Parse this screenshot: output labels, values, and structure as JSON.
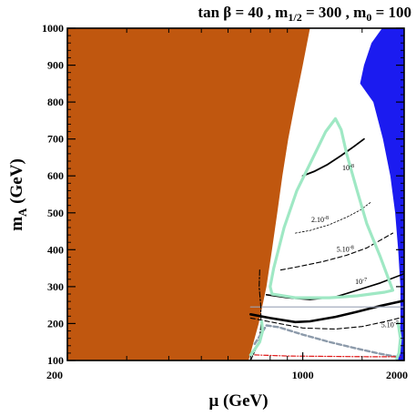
{
  "chart_data": {
    "type": "line",
    "title": "tan β = 40 ,  m1/2 = 300 ,  m0 = 100",
    "title_parts": [
      {
        "text": "tan ",
        "sub": false
      },
      {
        "text": "β",
        "sub": false
      },
      {
        "text": " = 40 ,  m",
        "sub": false
      },
      {
        "text": "1/2",
        "sub": true
      },
      {
        "text": " = 300 ,  m",
        "sub": false
      },
      {
        "text": "0",
        "sub": true
      },
      {
        "text": " = 100",
        "sub": false
      }
    ],
    "xlabel": "μ (GeV)",
    "ylabel_main": "m",
    "ylabel_sub": "A",
    "ylabel_rest": " (GeV)",
    "x_scale": "log",
    "xlim": [
      200,
      2000
    ],
    "ylim": [
      100,
      1000
    ],
    "x_tick_labels": [
      {
        "value": 200,
        "label": "200"
      },
      {
        "value": 1000,
        "label": "1000"
      },
      {
        "value": 2000,
        "label": "2000"
      }
    ],
    "y_tick_labels": [
      {
        "value": 100,
        "label": "100"
      },
      {
        "value": 200,
        "label": "200"
      },
      {
        "value": 300,
        "label": "300"
      },
      {
        "value": 400,
        "label": "400"
      },
      {
        "value": 500,
        "label": "500"
      },
      {
        "value": 600,
        "label": "600"
      },
      {
        "value": 700,
        "label": "700"
      },
      {
        "value": 800,
        "label": "800"
      },
      {
        "value": 900,
        "label": "900"
      },
      {
        "value": 1000,
        "label": "1000"
      }
    ],
    "grid": false,
    "regions": [
      {
        "name": "excluded-left",
        "color": "#c0570f",
        "points": [
          [
            200,
            1000
          ],
          [
            1050,
            1000
          ],
          [
            1000,
            900
          ],
          [
            950,
            800
          ],
          [
            905,
            700
          ],
          [
            870,
            600
          ],
          [
            840,
            500
          ],
          [
            810,
            400
          ],
          [
            780,
            300
          ],
          [
            740,
            200
          ],
          [
            690,
            100
          ],
          [
            200,
            100
          ]
        ]
      },
      {
        "name": "excluded-right",
        "color": "#1b1bf0",
        "points": [
          [
            1720,
            1000
          ],
          [
            2000,
            1000
          ],
          [
            2000,
            100
          ],
          [
            1920,
            100
          ],
          [
            1950,
            200
          ],
          [
            1950,
            300
          ],
          [
            1920,
            400
          ],
          [
            1880,
            500
          ],
          [
            1820,
            600
          ],
          [
            1730,
            700
          ],
          [
            1620,
            800
          ],
          [
            1480,
            850
          ],
          [
            1520,
            900
          ],
          [
            1600,
            960
          ]
        ]
      }
    ],
    "series": [
      {
        "label": "10-8",
        "color": "#000000",
        "dash": "none",
        "width": 1.8,
        "points": [
          [
            1000,
            600
          ],
          [
            1080,
            612
          ],
          [
            1180,
            630
          ],
          [
            1300,
            655
          ],
          [
            1420,
            680
          ],
          [
            1520,
            700
          ]
        ]
      },
      {
        "label": "2.10-8",
        "color": "#000000",
        "dash": "2,2",
        "width": 0.8,
        "points": [
          [
            950,
            445
          ],
          [
            1050,
            452
          ],
          [
            1200,
            468
          ],
          [
            1350,
            488
          ],
          [
            1480,
            507
          ],
          [
            1600,
            530
          ]
        ]
      },
      {
        "label": "5.10-8",
        "color": "#000000",
        "dash": "5,3",
        "width": 1.1,
        "points": [
          [
            860,
            345
          ],
          [
            980,
            355
          ],
          [
            1150,
            368
          ],
          [
            1350,
            385
          ],
          [
            1550,
            405
          ],
          [
            1850,
            445
          ]
        ]
      },
      {
        "label": "10-7",
        "color": "#000000",
        "dash": "none",
        "width": 1.6,
        "points": [
          [
            780,
            278
          ],
          [
            900,
            270
          ],
          [
            1050,
            265
          ],
          [
            1250,
            272
          ],
          [
            1450,
            290
          ],
          [
            1700,
            310
          ],
          [
            2000,
            335
          ]
        ]
      },
      {
        "label": "",
        "color": "#000000",
        "dash": "none",
        "width": 2.6,
        "points": [
          [
            700,
            225
          ],
          [
            800,
            215
          ],
          [
            950,
            204
          ],
          [
            1050,
            206
          ],
          [
            1250,
            218
          ],
          [
            1450,
            232
          ],
          [
            1700,
            248
          ],
          [
            2000,
            262
          ]
        ]
      },
      {
        "label": "5.10-7",
        "color": "#000000",
        "dash": "5,3",
        "width": 1.1,
        "points": [
          [
            700,
            215
          ],
          [
            850,
            200
          ],
          [
            1000,
            188
          ],
          [
            1250,
            185
          ],
          [
            1500,
            192
          ],
          [
            1750,
            205
          ],
          [
            2000,
            218
          ]
        ]
      },
      {
        "label": "",
        "color": "#9aa3b5",
        "dash": "none",
        "width": 1.2,
        "points": [
          [
            700,
            245
          ],
          [
            1000,
            245
          ],
          [
            1500,
            245
          ],
          [
            2000,
            245
          ]
        ]
      },
      {
        "label": "",
        "color": "#000000",
        "dash": "6,2,2,2",
        "width": 1.1,
        "points": [
          [
            745,
            345
          ],
          [
            742,
            300
          ],
          [
            750,
            250
          ],
          [
            752,
            200
          ],
          [
            745,
            160
          ],
          [
            725,
            130
          ],
          [
            700,
            100
          ]
        ]
      },
      {
        "label": "",
        "color": "#8c9aaa",
        "dash": "5,3",
        "width": 2.4,
        "points": [
          [
            720,
            145
          ],
          [
            780,
            195
          ],
          [
            850,
            190
          ],
          [
            1000,
            170
          ],
          [
            1200,
            150
          ],
          [
            1450,
            132
          ],
          [
            1700,
            118
          ],
          [
            1900,
            110
          ]
        ]
      },
      {
        "label": "",
        "color": "#e01818",
        "dash": "5,2,1,2",
        "width": 1.2,
        "points": [
          [
            720,
            115
          ],
          [
            900,
            112
          ],
          [
            1200,
            111
          ],
          [
            1600,
            110
          ],
          [
            1950,
            110
          ]
        ]
      },
      {
        "label": "",
        "color": "#9fe8c4",
        "dash": "none",
        "width": 3.2,
        "points": [
          [
            1250,
            755
          ],
          [
            1170,
            720
          ],
          [
            1060,
            640
          ],
          [
            960,
            560
          ],
          [
            880,
            460
          ],
          [
            820,
            350
          ],
          [
            800,
            300
          ],
          [
            810,
            280
          ],
          [
            950,
            270
          ],
          [
            1200,
            270
          ],
          [
            1450,
            275
          ],
          [
            1750,
            285
          ],
          [
            1850,
            290
          ],
          [
            1700,
            380
          ],
          [
            1550,
            470
          ],
          [
            1450,
            560
          ],
          [
            1350,
            660
          ],
          [
            1300,
            725
          ],
          [
            1250,
            755
          ]
        ]
      },
      {
        "label": "",
        "color": "#9fe8c4",
        "dash": "none",
        "width": 3.2,
        "points": [
          [
            755,
            205
          ],
          [
            760,
            180
          ],
          [
            745,
            150
          ],
          [
            720,
            130
          ],
          [
            700,
            115
          ]
        ]
      },
      {
        "label": "",
        "color": "#9fe8c4",
        "dash": "none",
        "width": 3.2,
        "points": [
          [
            1920,
            200
          ],
          [
            1950,
            160
          ],
          [
            1930,
            120
          ],
          [
            1900,
            105
          ]
        ]
      }
    ],
    "annotations": [
      {
        "text_main": "10",
        "text_sup": "-8",
        "x": 1310,
        "y": 615
      },
      {
        "text_main": "2.10",
        "text_sup": "-8",
        "x": 1060,
        "y": 475
      },
      {
        "text_main": "5.10",
        "text_sup": "-8",
        "x": 1260,
        "y": 395
      },
      {
        "text_main": "10",
        "text_sup": "-7",
        "x": 1430,
        "y": 307
      },
      {
        "text_main": "5.10",
        "text_sup": "-7",
        "x": 1710,
        "y": 190
      }
    ]
  }
}
